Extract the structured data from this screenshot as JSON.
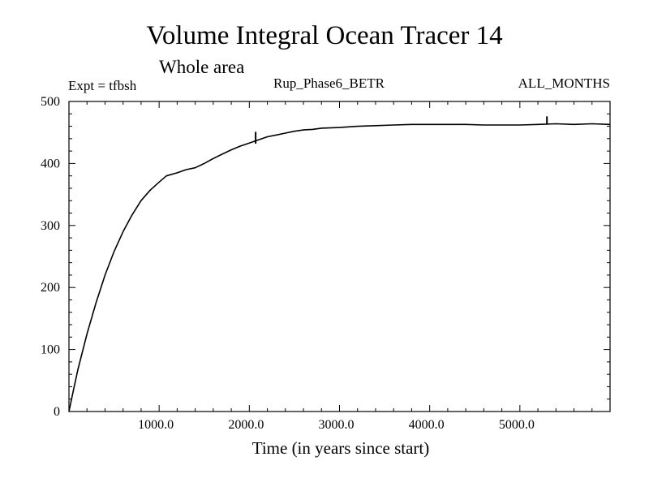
{
  "header": {
    "title": "Volume Integral Ocean Tracer 14",
    "subtitle": "Whole area",
    "expt_label": "Expt = tfbsh",
    "run_label": "Rup_Phase6_BETR",
    "months_label": "ALL_MONTHS"
  },
  "chart_data": {
    "type": "line",
    "title": "Volume Integral Ocean Tracer 14",
    "subtitle": "Whole area",
    "xlabel": "Time (in years since start)",
    "ylabel": "",
    "xlim": [
      0,
      6000
    ],
    "ylim": [
      0,
      500
    ],
    "x_ticks": [
      1000,
      2000,
      3000,
      4000,
      5000
    ],
    "x_tick_labels": [
      "1000.0",
      "2000.0",
      "3000.0",
      "4000.0",
      "5000.0"
    ],
    "y_ticks": [
      0,
      100,
      200,
      300,
      400,
      500
    ],
    "y_tick_labels": [
      "0",
      "100",
      "200",
      "300",
      "400",
      "500"
    ],
    "grid": false,
    "series": [
      {
        "name": "Volume Integral Ocean Tracer 14",
        "color": "#000000",
        "x": [
          0,
          50,
          100,
          200,
          300,
          400,
          500,
          600,
          700,
          800,
          900,
          1000,
          1080,
          1200,
          1300,
          1400,
          1500,
          1600,
          1700,
          1800,
          1900,
          2000,
          2100,
          2200,
          2300,
          2400,
          2500,
          2600,
          2700,
          2800,
          3000,
          3200,
          3400,
          3600,
          3800,
          4000,
          4200,
          4400,
          4600,
          4800,
          5000,
          5200,
          5400,
          5600,
          5800,
          6000
        ],
        "y": [
          0,
          35,
          68,
          125,
          175,
          220,
          258,
          290,
          317,
          340,
          357,
          370,
          380,
          385,
          390,
          393,
          400,
          408,
          415,
          422,
          428,
          433,
          438,
          443,
          446,
          449,
          452,
          454,
          455,
          457,
          458,
          460,
          461,
          462,
          463,
          463,
          463,
          463,
          462,
          462,
          462,
          463,
          464,
          463,
          464,
          463
        ]
      }
    ],
    "spikes": [
      {
        "x": 2070,
        "y_from": 432,
        "y_to": 451
      },
      {
        "x": 5300,
        "y_from": 463,
        "y_to": 476
      }
    ]
  }
}
